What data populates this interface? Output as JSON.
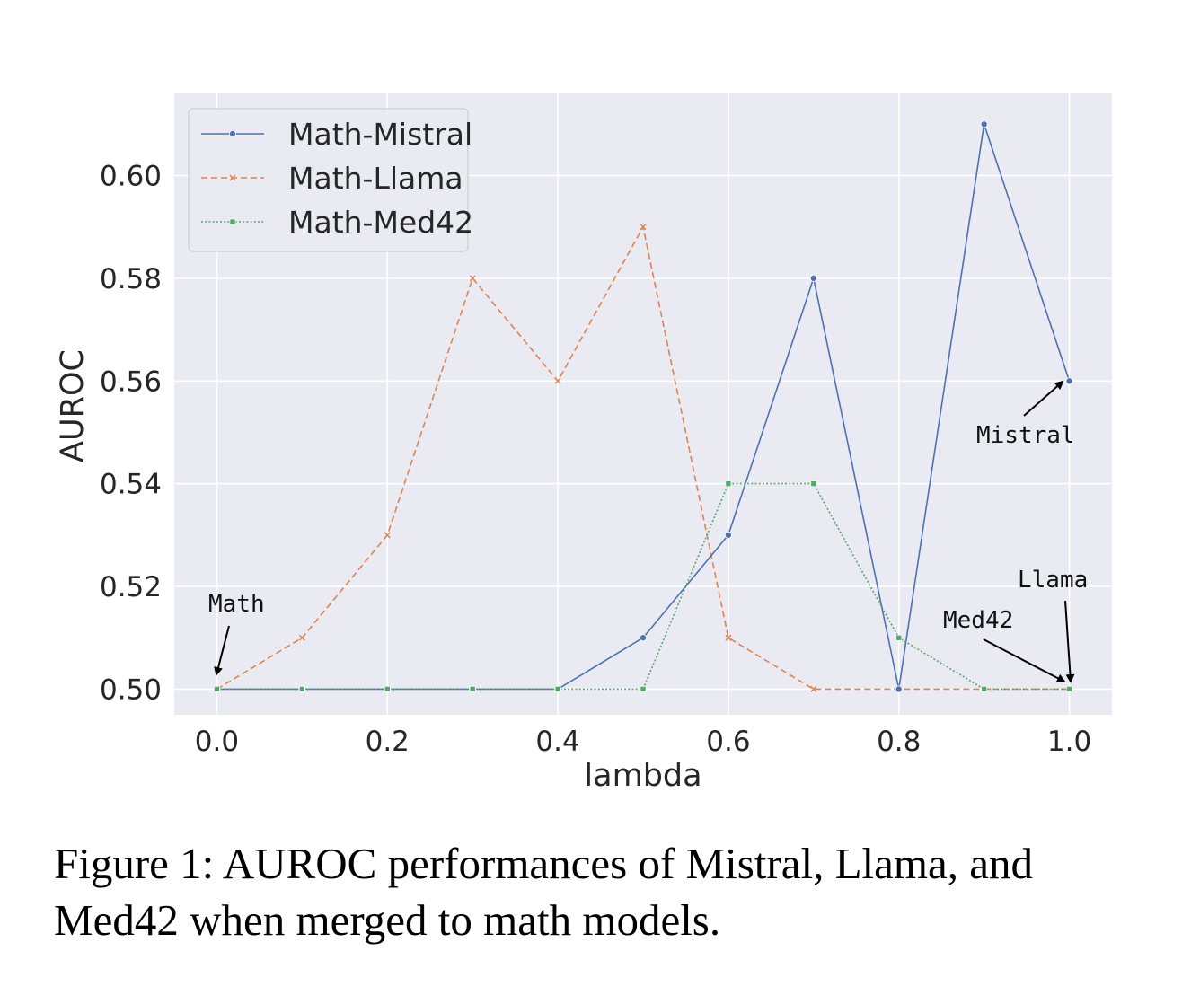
{
  "caption": "Figure 1: AUROC performances of Mistral, Llama, and Med42 when merged to math models.",
  "chart_data": {
    "type": "line",
    "title": "",
    "xlabel": "lambda",
    "ylabel": "AUROC",
    "xlim": [
      -0.05,
      1.05
    ],
    "ylim": [
      0.495,
      0.616
    ],
    "xticks": [
      0.0,
      0.2,
      0.4,
      0.6,
      0.8,
      1.0
    ],
    "xtick_labels": [
      "0.0",
      "0.2",
      "0.4",
      "0.6",
      "0.8",
      "1.0"
    ],
    "yticks": [
      0.5,
      0.52,
      0.54,
      0.56,
      0.58,
      0.6
    ],
    "ytick_labels": [
      "0.50",
      "0.52",
      "0.54",
      "0.56",
      "0.58",
      "0.60"
    ],
    "grid": true,
    "legend_position": "top-left",
    "background": "#eaeaf2",
    "x": [
      0.0,
      0.1,
      0.2,
      0.3,
      0.4,
      0.5,
      0.6,
      0.7,
      0.8,
      0.9,
      1.0
    ],
    "series": [
      {
        "name": "Math-Mistral",
        "color": "#4c72b0",
        "line_style": "solid",
        "marker": "circle",
        "values": [
          0.5,
          0.5,
          0.5,
          0.5,
          0.5,
          0.51,
          0.53,
          0.58,
          0.5,
          0.61,
          0.56
        ]
      },
      {
        "name": "Math-Llama",
        "color": "#dd8452",
        "line_style": "dashed",
        "marker": "x",
        "values": [
          0.5,
          0.51,
          0.53,
          0.58,
          0.56,
          0.59,
          0.51,
          0.5,
          0.5,
          0.5,
          0.5
        ]
      },
      {
        "name": "Math-Med42",
        "color": "#55a868",
        "line_style": "dotted",
        "marker": "square",
        "values": [
          0.5,
          0.5,
          0.5,
          0.5,
          0.5,
          0.5,
          0.54,
          0.54,
          0.51,
          0.5,
          0.5
        ]
      }
    ],
    "annotations": [
      {
        "text": "Math",
        "x": 0.0,
        "y": 0.5
      },
      {
        "text": "Mistral",
        "x": 1.0,
        "y": 0.56
      },
      {
        "text": "Llama",
        "x": 1.0,
        "y": 0.5
      },
      {
        "text": "Med42",
        "x": 1.0,
        "y": 0.5
      }
    ]
  }
}
